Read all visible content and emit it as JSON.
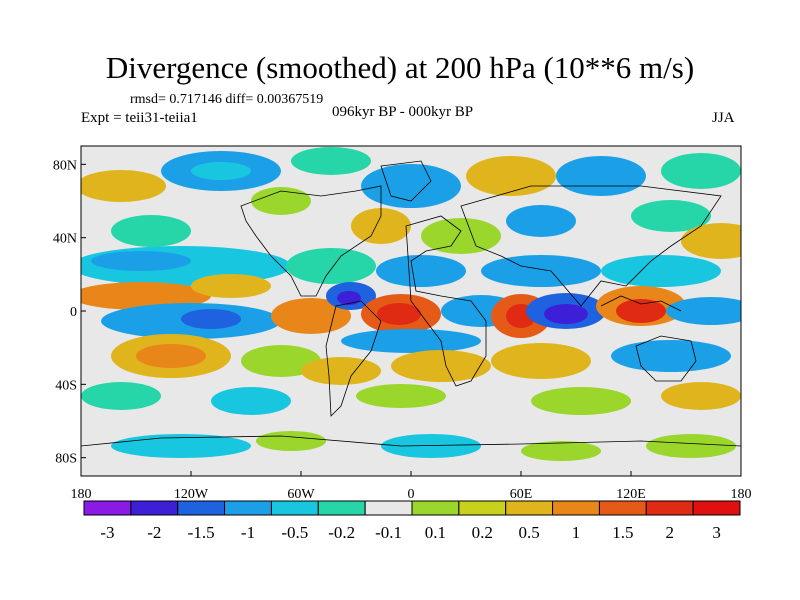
{
  "title": "Divergence (smoothed) at 200 hPa (10**6 m/s)",
  "rmsd_label": "rmsd= 0.717146 diff= 0.00367519",
  "expt_label": "Expt = teii31-teiia1",
  "period_label": "096kyr BP - 000kyr BP",
  "season_label": "JJA",
  "map": {
    "lon_range": [
      -180,
      180
    ],
    "lat_range": [
      -90,
      90
    ],
    "x_ticks": [
      "180",
      "120W",
      "60W",
      "0",
      "60E",
      "120E",
      "180"
    ],
    "y_ticks": [
      "80N",
      "40N",
      "0",
      "40S",
      "80S"
    ],
    "background_color": "#e8e8e8",
    "coastline_color": "#000000"
  },
  "colorbar": {
    "labels": [
      "-3",
      "-2",
      "-1.5",
      "-1",
      "-0.5",
      "-0.2",
      "-0.1",
      "0.1",
      "0.2",
      "0.5",
      "1",
      "1.5",
      "2",
      "3"
    ],
    "colors": [
      "#8a1ae6",
      "#3c1fd6",
      "#1f62e0",
      "#1ba0e8",
      "#19c6e0",
      "#26d6a8",
      "#e8e8e8",
      "#9ad62c",
      "#c8d21c",
      "#e0b41c",
      "#e8861a",
      "#e65a18",
      "#e02a14",
      "#e01010"
    ]
  }
}
